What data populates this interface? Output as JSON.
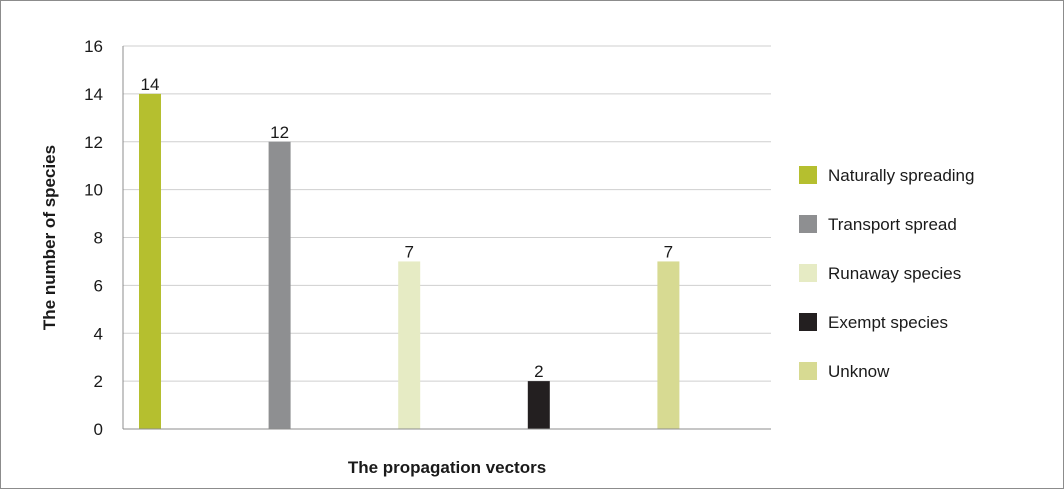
{
  "chart_data": {
    "type": "bar",
    "title": "",
    "xlabel": "The propagation vectors",
    "ylabel": "The number of species",
    "ylim": [
      0,
      16
    ],
    "yticks": [
      0,
      2,
      4,
      6,
      8,
      10,
      12,
      14,
      16
    ],
    "grid": "horizontal",
    "legend_position": "right",
    "series": [
      {
        "name": "Naturally spreading",
        "value": 14,
        "color": "#b5bf2f"
      },
      {
        "name": "Transport spread",
        "value": 12,
        "color": "#8e8f91"
      },
      {
        "name": "Runaway species",
        "value": 7,
        "color": "#e6ebc4"
      },
      {
        "name": "Exempt species",
        "value": 2,
        "color": "#231f20"
      },
      {
        "name": "Unknow",
        "value": 7,
        "color": "#d7da92"
      }
    ]
  }
}
